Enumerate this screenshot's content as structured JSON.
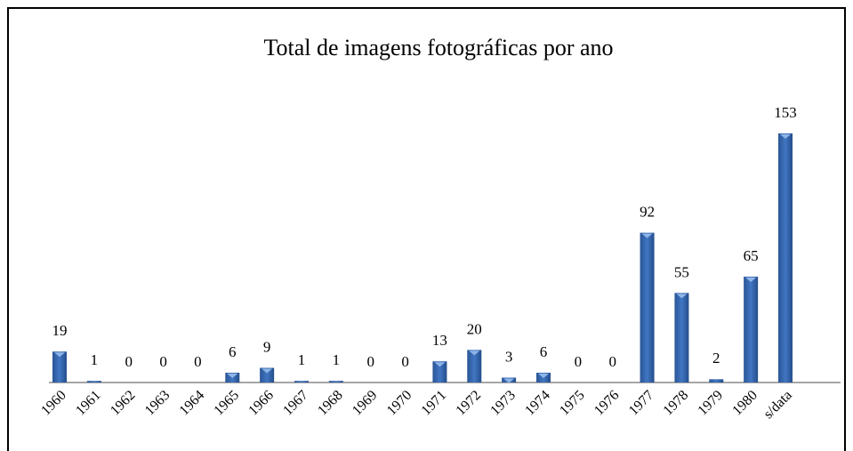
{
  "chart_data": {
    "type": "bar",
    "title": "Total de imagens fotográficas por ano",
    "categories": [
      "1960",
      "1961",
      "1962",
      "1963",
      "1964",
      "1965",
      "1966",
      "1967",
      "1968",
      "1969",
      "1970",
      "1971",
      "1972",
      "1973",
      "1974",
      "1975",
      "1976",
      "1977",
      "1978",
      "1979",
      "1980",
      "s/data"
    ],
    "values": [
      19,
      1,
      0,
      0,
      0,
      6,
      9,
      1,
      1,
      0,
      0,
      13,
      20,
      3,
      6,
      0,
      0,
      92,
      55,
      2,
      65,
      153
    ],
    "color": "#2f62aa"
  }
}
